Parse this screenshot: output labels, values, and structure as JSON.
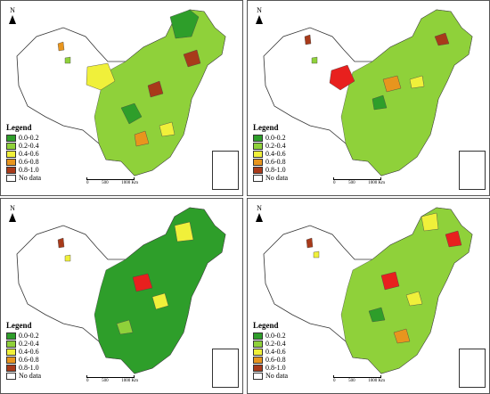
{
  "panels": [
    {
      "id": "a",
      "legend_title": "Legend",
      "north_label": "N",
      "scale_labels": [
        "0",
        "500",
        "1000 Km"
      ]
    },
    {
      "id": "b",
      "legend_title": "Legend",
      "north_label": "N",
      "scale_labels": [
        "0",
        "500",
        "1000 Km"
      ]
    },
    {
      "id": "c",
      "legend_title": "Legend",
      "north_label": "N",
      "scale_labels": [
        "0",
        "500",
        "1000 Km"
      ]
    },
    {
      "id": "d",
      "legend_title": "Legend",
      "north_label": "N",
      "scale_labels": [
        "0",
        "500",
        "1000 Km"
      ]
    }
  ],
  "legend_items": [
    {
      "label": "0.0-0.2",
      "color": "#2e9e2a"
    },
    {
      "label": "0.2-0.4",
      "color": "#8fd13a"
    },
    {
      "label": "0.4-0.6",
      "color": "#f0f03a"
    },
    {
      "label": "0.6-0.8",
      "color": "#e8951e"
    },
    {
      "label": "0.8-1.0",
      "color": "#a83a1a"
    },
    {
      "label": "No data",
      "color": "#ffffff"
    }
  ],
  "highlight_color": "#e8201e"
}
